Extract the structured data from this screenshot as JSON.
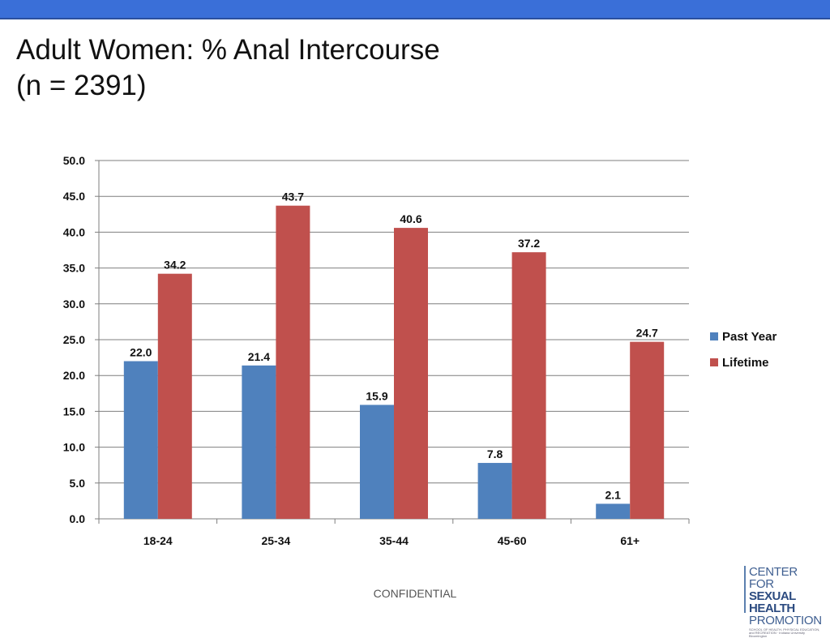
{
  "slide": {
    "title_line1": "Adult Women: % Anal Intercourse",
    "title_line2": "(n = 2391)",
    "footer": "CONFIDENTIAL"
  },
  "logo": {
    "line1": "CENTER FOR",
    "line2": "SEXUAL HEALTH",
    "line3": "PROMOTION",
    "line4": "SCHOOL OF HEALTH, PHYSICAL EDUCATION, and RECREATION · Indiana University Bloomington"
  },
  "chart_data": {
    "type": "bar",
    "categories": [
      "18-24",
      "25-34",
      "35-44",
      "45-60",
      "61+"
    ],
    "series": [
      {
        "name": "Past Year",
        "values": [
          22.0,
          21.4,
          15.9,
          7.8,
          2.1
        ],
        "color": "#4f81bd"
      },
      {
        "name": "Lifetime",
        "values": [
          34.2,
          43.7,
          40.6,
          37.2,
          24.7
        ],
        "color": "#c0504d"
      }
    ],
    "ylim": [
      0,
      50
    ],
    "yticks": [
      "0.0",
      "5.0",
      "10.0",
      "15.0",
      "20.0",
      "25.0",
      "30.0",
      "35.0",
      "40.0",
      "45.0",
      "50.0"
    ],
    "grid": true,
    "legend": "right"
  }
}
